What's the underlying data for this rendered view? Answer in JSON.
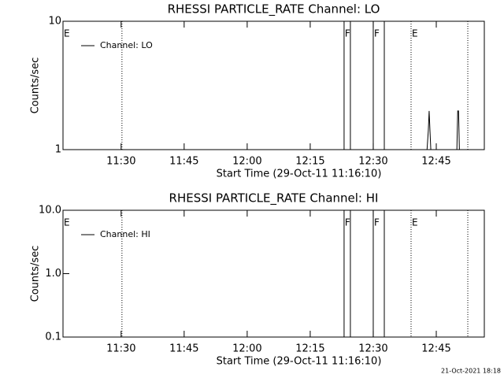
{
  "chart_data": [
    {
      "type": "line",
      "title": "RHESSI PARTICLE_RATE Channel: LO",
      "xlabel": "Start Time (29-Oct-11 11:16:10)",
      "ylabel": "Counts/sec",
      "xlim": [
        676.17,
        776.43
      ],
      "xticks": [
        {
          "value": 690,
          "label": "11:30"
        },
        {
          "value": 705,
          "label": "11:45"
        },
        {
          "value": 720,
          "label": "12:00"
        },
        {
          "value": 735,
          "label": "12:15"
        },
        {
          "value": 750,
          "label": "12:30"
        },
        {
          "value": 765,
          "label": "12:45"
        }
      ],
      "ylim": [
        1,
        10
      ],
      "yticks": [
        10,
        1
      ],
      "log_y": true,
      "legend": "upper left",
      "series": [
        {
          "name": "Channel: LO",
          "color": "#000000",
          "x": [
            762.8,
            763.1,
            763.3,
            763.5,
            763.7,
            766.0,
            769.9,
            770.1,
            770.3,
            770.5
          ],
          "values": [
            1,
            1.4,
            2,
            1.4,
            1,
            null,
            1,
            2,
            2,
            1
          ]
        }
      ],
      "vlines": [
        {
          "x": 690.2,
          "style": "dotted"
        },
        {
          "x": 743.06,
          "style": "solid"
        },
        {
          "x": 744.56,
          "style": "solid"
        },
        {
          "x": 750.0,
          "style": "solid"
        },
        {
          "x": 752.63,
          "style": "solid"
        },
        {
          "x": 759.0,
          "style": "dotted"
        },
        {
          "x": 772.5,
          "style": "dotted"
        }
      ],
      "annotations": [
        {
          "x": 676.17,
          "label": "E"
        },
        {
          "x": 743.06,
          "label": "F"
        },
        {
          "x": 750.0,
          "label": "F"
        },
        {
          "x": 759.0,
          "label": "E"
        }
      ]
    },
    {
      "type": "line",
      "title": "RHESSI PARTICLE_RATE Channel: HI",
      "xlabel": "Start Time (29-Oct-11 11:16:10)",
      "ylabel": "Counts/sec",
      "xlim": [
        676.17,
        776.43
      ],
      "xticks": [
        {
          "value": 690,
          "label": "11:30"
        },
        {
          "value": 705,
          "label": "11:45"
        },
        {
          "value": 720,
          "label": "12:00"
        },
        {
          "value": 735,
          "label": "12:15"
        },
        {
          "value": 750,
          "label": "12:30"
        },
        {
          "value": 765,
          "label": "12:45"
        }
      ],
      "ylim": [
        0.1,
        10
      ],
      "yticks": [
        {
          "value": 10,
          "label": "10.0"
        },
        {
          "value": 1,
          "label": "1.0"
        },
        0.1
      ],
      "log_y": true,
      "legend": "upper left",
      "series": [
        {
          "name": "Channel: HI",
          "color": "#000000",
          "x": [],
          "values": []
        }
      ],
      "vlines": [
        {
          "x": 690.2,
          "style": "dotted"
        },
        {
          "x": 743.06,
          "style": "solid"
        },
        {
          "x": 744.56,
          "style": "solid"
        },
        {
          "x": 750.0,
          "style": "solid"
        },
        {
          "x": 752.63,
          "style": "solid"
        },
        {
          "x": 759.0,
          "style": "dotted"
        },
        {
          "x": 772.5,
          "style": "dotted"
        }
      ],
      "annotations": [
        {
          "x": 676.17,
          "label": "E"
        },
        {
          "x": 743.06,
          "label": "F"
        },
        {
          "x": 750.0,
          "label": "F"
        },
        {
          "x": 759.0,
          "label": "E"
        }
      ]
    }
  ],
  "footer": "21-Oct-2021 18:18"
}
